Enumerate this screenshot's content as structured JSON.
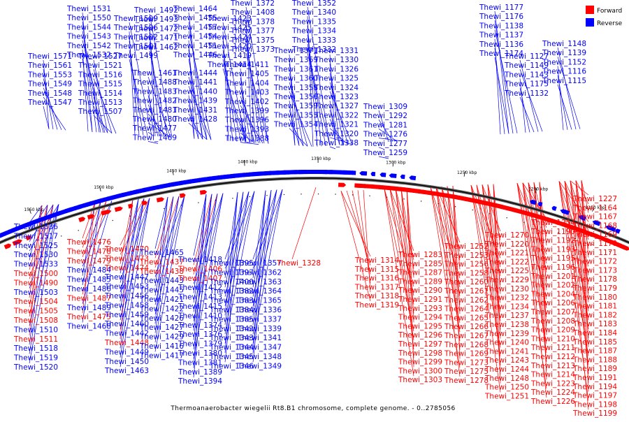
{
  "title": "Thermoanaerobacter wiegelii Rt8.B1 chromosome, complete genome. - 0..2785056",
  "legend": [
    {
      "label": "Forward",
      "color": "#ff0000"
    },
    {
      "label": "Reverse",
      "color": "#0000ff"
    }
  ],
  "colors": {
    "forward": "#ff0000",
    "reverse": "#0000ff",
    "backbone": "#000000"
  },
  "ticks": [
    "1550 kbp",
    "1500 kbp",
    "1450 kbp",
    "1400 kbp",
    "1350 kbp",
    "1300 kbp",
    "1250 kbp",
    "1200 kbp",
    "1150 kbp"
  ],
  "genes_outer_blue": [
    "Thewi_1571",
    "Thewi_1561",
    "Thewi_1553",
    "Thewi_1549",
    "Thewi_1548",
    "Thewi_1547",
    "Thewi_1531",
    "Thewi_1550",
    "Thewi_1544",
    "Thewi_1543",
    "Thewi_1542",
    "Thewi_1532",
    "Thewi_1527",
    "Thewi_1521",
    "Thewi_1516",
    "Thewi_1515",
    "Thewi_1514",
    "Thewi_1513",
    "Thewi_1507",
    "Thewi_1509",
    "Thewi_1506",
    "Thewi_1502",
    "Thewi_1501",
    "Thewi_1499",
    "Thewi_1492",
    "Thewi_1493",
    "Thewi_1472",
    "Thewi_1471",
    "Thewi_1462",
    "Thewi_1461",
    "Thewi_1488",
    "Thewi_1483",
    "Thewi_1482",
    "Thewi_1481",
    "Thewi_1480",
    "Thewi_1477",
    "Thewi_1469",
    "Thewi_1464",
    "Thewi_1455",
    "Thewi_1457",
    "Thewi_1454",
    "Thewi_1451",
    "Thewi_1446",
    "Thewi_1444",
    "Thewi_1441",
    "Thewi_1440",
    "Thewi_1439",
    "Thewi_1431",
    "Thewi_1428",
    "Thewi_1423",
    "Thewi_1425",
    "Thewi_1424",
    "Thewi_1420",
    "Thewi_1419",
    "Thewi_1414",
    "Thewi_1411",
    "Thewi_1405",
    "Thewi_1404",
    "Thewi_1403",
    "Thewi_1402",
    "Thewi_1399",
    "Thewi_1396",
    "Thewi_1393",
    "Thewi_1388",
    "Thewi_1372",
    "Thewi_1408",
    "Thewi_1378",
    "Thewi_1377",
    "Thewi_1375",
    "Thewi_1373",
    "Thewi_1371",
    "Thewi_1369",
    "Thewi_1361",
    "Thewi_1360",
    "Thewi_1358",
    "Thewi_1356",
    "Thewi_1359",
    "Thewi_1355",
    "Thewi_1354",
    "Thewi_1352",
    "Thewi_1340",
    "Thewi_1335",
    "Thewi_1334",
    "Thewi_1333",
    "Thewi_1332",
    "Thewi_1331",
    "Thewi_1330",
    "Thewi_1326",
    "Thewi_1325",
    "Thewi_1324",
    "Thewi_1323",
    "Thewi_1327",
    "Thewi_1322",
    "Thewi_1321",
    "Thewi_1320",
    "Thewi_1338",
    "Thewi_1309",
    "Thewi_1292",
    "Thewi_1281",
    "Thewi_1276",
    "Thewi_1277",
    "Thewi_1259",
    "Thewi_1177",
    "Thewi_1176",
    "Thewi_1138",
    "Thewi_1137",
    "Thewi_1136",
    "Thewi_1174",
    "Thewi_1127",
    "Thewi_1149",
    "Thewi_1143",
    "Thewi_1175",
    "Thewi_1132",
    "Thewi_1148",
    "Thewi_1139",
    "Thewi_1152",
    "Thewi_1116",
    "Thewi_1115",
    "Thewi_1114",
    "Thewi_1122"
  ],
  "genes_inner_left": [
    {
      "id": "Thewi_1536",
      "s": "r"
    },
    {
      "id": "Thewi_1517",
      "s": "r"
    },
    {
      "id": "Thewi_1525",
      "s": "r"
    },
    {
      "id": "Thewi_1530",
      "s": "r"
    },
    {
      "id": "Thewi_1533",
      "s": "r"
    },
    {
      "id": "Thewi_1500",
      "s": "f"
    },
    {
      "id": "Thewi_1490",
      "s": "f"
    },
    {
      "id": "Thewi_1503",
      "s": "r"
    },
    {
      "id": "Thewi_1504",
      "s": "f"
    },
    {
      "id": "Thewi_1505",
      "s": "f"
    },
    {
      "id": "Thewi_1508",
      "s": "f"
    },
    {
      "id": "Thewi_1510",
      "s": "r"
    },
    {
      "id": "Thewi_1511",
      "s": "f"
    },
    {
      "id": "Thewi_1518",
      "s": "r"
    },
    {
      "id": "Thewi_1519",
      "s": "r"
    },
    {
      "id": "Thewi_1520",
      "s": "r"
    },
    {
      "id": "Thewi_1476",
      "s": "f"
    },
    {
      "id": "Thewi_1478",
      "s": "f"
    },
    {
      "id": "Thewi_1479",
      "s": "f"
    },
    {
      "id": "Thewi_1484",
      "s": "r"
    },
    {
      "id": "Thewi_1485",
      "s": "r"
    },
    {
      "id": "Thewi_1486",
      "s": "r"
    },
    {
      "id": "Thewi_1487",
      "s": "f"
    },
    {
      "id": "Thewi_1489",
      "s": "r"
    },
    {
      "id": "Thewi_1475",
      "s": "f"
    },
    {
      "id": "Thewi_1468",
      "s": "r"
    },
    {
      "id": "Thewi_1470",
      "s": "f"
    },
    {
      "id": "Thewi_1473",
      "s": "f"
    },
    {
      "id": "Thewi_1474",
      "s": "f"
    },
    {
      "id": "Thewi_1447",
      "s": "r"
    },
    {
      "id": "Thewi_1453",
      "s": "r"
    },
    {
      "id": "Thewi_1456",
      "s": "r"
    },
    {
      "id": "Thewi_1458",
      "s": "r"
    },
    {
      "id": "Thewi_1459",
      "s": "r"
    },
    {
      "id": "Thewi_1460",
      "s": "r"
    },
    {
      "id": "Thewi_1442",
      "s": "r"
    },
    {
      "id": "Thewi_1448",
      "s": "f"
    },
    {
      "id": "Thewi_1449",
      "s": "r"
    },
    {
      "id": "Thewi_1450",
      "s": "r"
    },
    {
      "id": "Thewi_1463",
      "s": "r"
    },
    {
      "id": "Thewi_1465",
      "s": "r"
    },
    {
      "id": "Thewi_1437",
      "s": "f"
    },
    {
      "id": "Thewi_1438",
      "s": "f"
    },
    {
      "id": "Thewi_1443",
      "s": "r"
    },
    {
      "id": "Thewi_1445",
      "s": "r"
    },
    {
      "id": "Thewi_1421",
      "s": "r"
    },
    {
      "id": "Thewi_1422",
      "s": "r"
    },
    {
      "id": "Thewi_1426",
      "s": "r"
    },
    {
      "id": "Thewi_1427",
      "s": "r"
    },
    {
      "id": "Thewi_1429",
      "s": "r"
    },
    {
      "id": "Thewi_1416",
      "s": "r"
    },
    {
      "id": "Thewi_1417",
      "s": "r"
    },
    {
      "id": "Thewi_1418",
      "s": "r"
    },
    {
      "id": "Thewi_1406",
      "s": "f"
    },
    {
      "id": "Thewi_1407",
      "s": "f"
    },
    {
      "id": "Thewi_1412",
      "s": "r"
    },
    {
      "id": "Thewi_1413",
      "s": "r"
    },
    {
      "id": "Thewi_1415",
      "s": "r"
    },
    {
      "id": "Thewi_1410",
      "s": "r"
    },
    {
      "id": "Thewi_1374",
      "s": "r"
    },
    {
      "id": "Thewi_1376",
      "s": "r"
    },
    {
      "id": "Thewi_1379",
      "s": "r"
    },
    {
      "id": "Thewi_1380",
      "s": "r"
    },
    {
      "id": "Thewi_1381",
      "s": "r"
    },
    {
      "id": "Thewi_1389",
      "s": "r"
    },
    {
      "id": "Thewi_1394",
      "s": "r"
    },
    {
      "id": "Thewi_1395",
      "s": "r"
    },
    {
      "id": "Thewi_1397",
      "s": "r"
    },
    {
      "id": "Thewi_1400",
      "s": "r"
    },
    {
      "id": "Thewi_1382",
      "s": "r"
    },
    {
      "id": "Thewi_1383",
      "s": "r"
    },
    {
      "id": "Thewi_1384",
      "s": "r"
    },
    {
      "id": "Thewi_1385",
      "s": "r"
    },
    {
      "id": "Thewi_1342",
      "s": "r"
    },
    {
      "id": "Thewi_1343",
      "s": "r"
    },
    {
      "id": "Thewi_1344",
      "s": "r"
    },
    {
      "id": "Thewi_1345",
      "s": "r"
    },
    {
      "id": "Thewi_1346",
      "s": "r"
    },
    {
      "id": "Thewi_1357",
      "s": "r"
    },
    {
      "id": "Thewi_1362",
      "s": "r"
    },
    {
      "id": "Thewi_1363",
      "s": "r"
    },
    {
      "id": "Thewi_1364",
      "s": "r"
    },
    {
      "id": "Thewi_1365",
      "s": "r"
    },
    {
      "id": "Thewi_1336",
      "s": "r"
    },
    {
      "id": "Thewi_1337",
      "s": "r"
    },
    {
      "id": "Thewi_1339",
      "s": "r"
    },
    {
      "id": "Thewi_1341",
      "s": "r"
    },
    {
      "id": "Thewi_1347",
      "s": "r"
    },
    {
      "id": "Thewi_1348",
      "s": "r"
    },
    {
      "id": "Thewi_1349",
      "s": "r"
    },
    {
      "id": "Thewi_1328",
      "s": "f"
    }
  ],
  "genes_inner_right_red": [
    "Thewi_1314",
    "Thewi_1315",
    "Thewi_1316",
    "Thewi_1317",
    "Thewi_1318",
    "Thewi_1319",
    "Thewi_1283",
    "Thewi_1285",
    "Thewi_1287",
    "Thewi_1289",
    "Thewi_1290",
    "Thewi_1291",
    "Thewi_1293",
    "Thewi_1294",
    "Thewi_1295",
    "Thewi_1296",
    "Thewi_1297",
    "Thewi_1298",
    "Thewi_1299",
    "Thewi_1300",
    "Thewi_1303",
    "Thewi_1252",
    "Thewi_1253",
    "Thewi_1256",
    "Thewi_1258",
    "Thewi_1260",
    "Thewi_1261",
    "Thewi_1262",
    "Thewi_1264",
    "Thewi_1265",
    "Thewi_1266",
    "Thewi_1267",
    "Thewi_1268",
    "Thewi_1269",
    "Thewi_1273",
    "Thewi_1275",
    "Thewi_1278",
    "Thewi_1270",
    "Thewi_1220",
    "Thewi_1221",
    "Thewi_1222",
    "Thewi_1225",
    "Thewi_1229",
    "Thewi_1230",
    "Thewi_1232",
    "Thewi_1234",
    "Thewi_1237",
    "Thewi_1238",
    "Thewi_1239",
    "Thewi_1240",
    "Thewi_1241",
    "Thewi_1243",
    "Thewi_1244",
    "Thewi_1248",
    "Thewi_1250",
    "Thewi_1251",
    "Thewi_1254",
    "Thewi_1190",
    "Thewi_1192",
    "Thewi_1193",
    "Thewi_1195",
    "Thewi_1196",
    "Thewi_1201",
    "Thewi_1202",
    "Thewi_1204",
    "Thewi_1206",
    "Thewi_1207",
    "Thewi_1208",
    "Thewi_1209",
    "Thewi_1210",
    "Thewi_1211",
    "Thewi_1212",
    "Thewi_1213",
    "Thewi_1214",
    "Thewi_1223",
    "Thewi_1224",
    "Thewi_1226",
    "Thewi_1227",
    "Thewi_1164",
    "Thewi_1167",
    "Thewi_1168",
    "Thewi_1169",
    "Thewi_1170",
    "Thewi_1171",
    "Thewi_1172",
    "Thewi_1173",
    "Thewi_1178",
    "Thewi_1179",
    "Thewi_1180",
    "Thewi_1181",
    "Thewi_1182",
    "Thewi_1183",
    "Thewi_1184",
    "Thewi_1185",
    "Thewi_1187",
    "Thewi_1188",
    "Thewi_1189",
    "Thewi_1191",
    "Thewi_1194",
    "Thewi_1197",
    "Thewi_1198",
    "Thewi_1199"
  ]
}
